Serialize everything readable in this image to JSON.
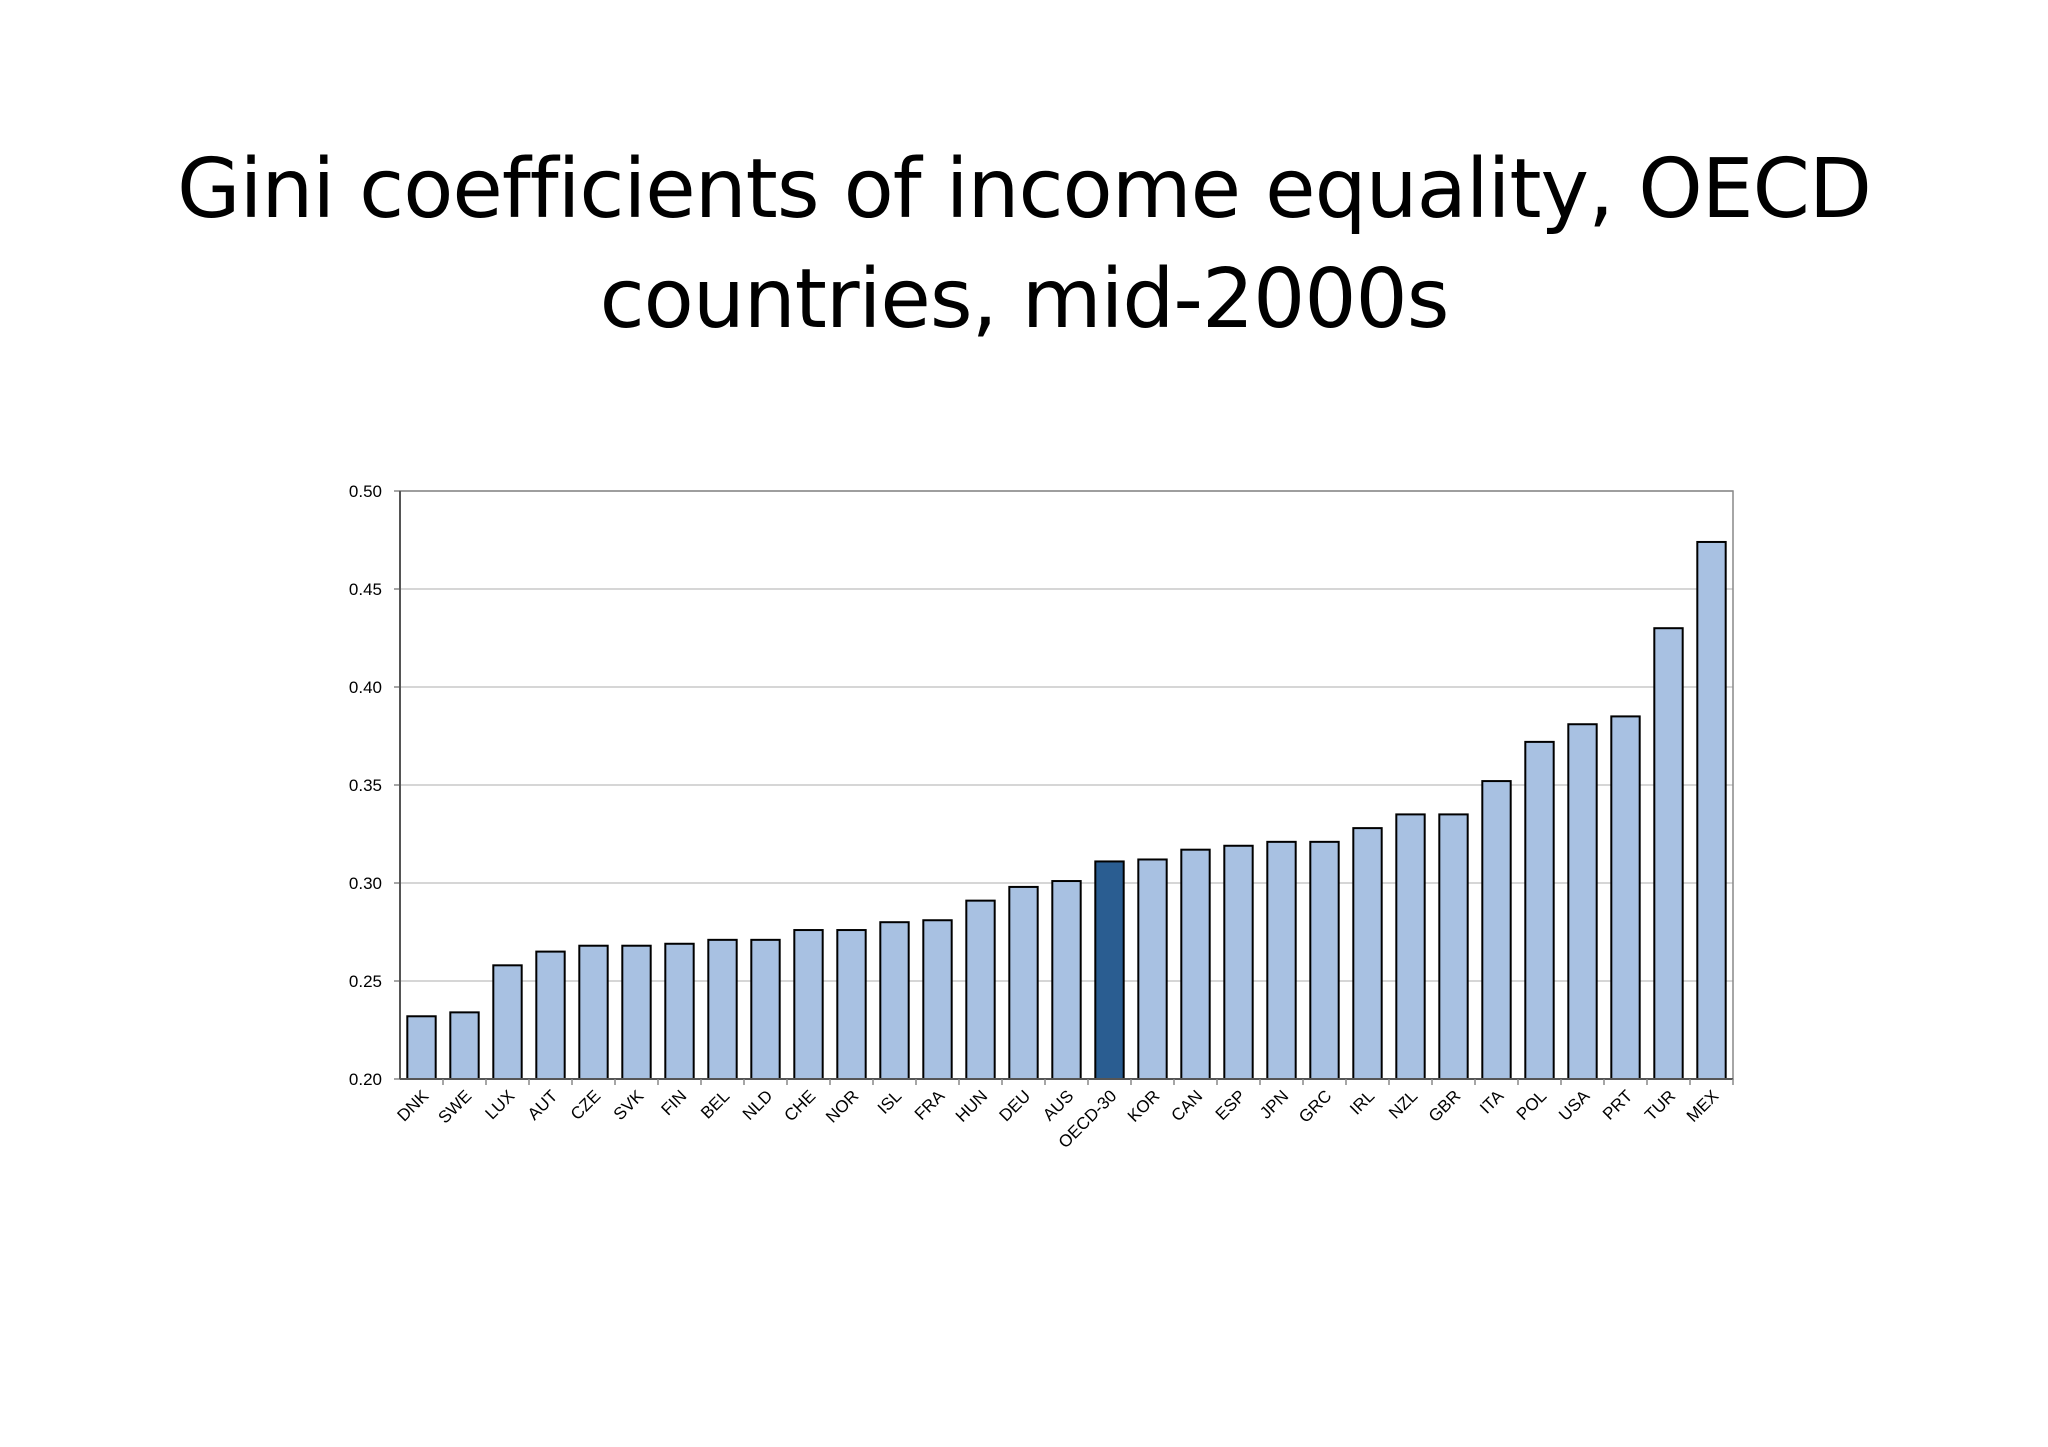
{
  "slide": {
    "title_line1": "Gini coefficients of income equality, OECD",
    "title_line2": "countries, mid-2000s"
  },
  "colors": {
    "bar": "#a8c1e2",
    "highlight_bar": "#2a5d91",
    "bar_outline": "#000000",
    "grid": "#c8c8c8",
    "axis": "#888888"
  },
  "chart_data": {
    "type": "bar",
    "categories": [
      "DNK",
      "SWE",
      "LUX",
      "AUT",
      "CZE",
      "SVK",
      "FIN",
      "BEL",
      "NLD",
      "CHE",
      "NOR",
      "ISL",
      "FRA",
      "HUN",
      "DEU",
      "AUS",
      "OECD-30",
      "KOR",
      "CAN",
      "ESP",
      "JPN",
      "GRC",
      "IRL",
      "NZL",
      "GBR",
      "ITA",
      "POL",
      "USA",
      "PRT",
      "TUR",
      "MEX"
    ],
    "values": [
      0.232,
      0.234,
      0.258,
      0.265,
      0.268,
      0.268,
      0.269,
      0.271,
      0.271,
      0.276,
      0.276,
      0.28,
      0.281,
      0.291,
      0.298,
      0.301,
      0.311,
      0.312,
      0.317,
      0.319,
      0.321,
      0.321,
      0.328,
      0.335,
      0.335,
      0.352,
      0.372,
      0.381,
      0.385,
      0.43,
      0.474
    ],
    "highlight": "OECD-30",
    "yticks": [
      "0.20",
      "0.25",
      "0.30",
      "0.35",
      "0.40",
      "0.45",
      "0.50"
    ],
    "ylim": [
      0.2,
      0.5
    ],
    "grid": true,
    "title": "Gini coefficients of income equality, OECD countries, mid-2000s",
    "xlabel": "",
    "ylabel": ""
  }
}
